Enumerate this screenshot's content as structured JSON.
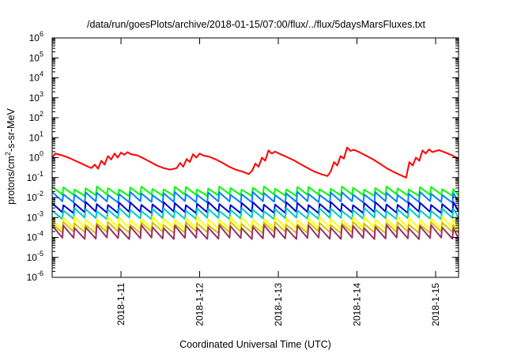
{
  "chart_data": {
    "type": "line",
    "title": "/data/run/goesPlots/archive/2018-01-15/07:00/flux/../flux/5daysMarsFluxes.txt",
    "xlabel": "Coordinated Universal Time (UTC)",
    "ylabel": "protons/cm²-s-sr-MeV",
    "ylabel_parts": [
      "protons/cm",
      "2",
      "-s-sr-MeV"
    ],
    "y_scale": "log",
    "ylim": [
      1e-06,
      1000000.0
    ],
    "y_ticks": [
      {
        "base": "10",
        "exp": "-6",
        "value": 1e-06
      },
      {
        "base": "10",
        "exp": "-5",
        "value": 1e-05
      },
      {
        "base": "10",
        "exp": "-4",
        "value": 0.0001
      },
      {
        "base": "10",
        "exp": "-3",
        "value": 0.001
      },
      {
        "base": "10",
        "exp": "-2",
        "value": 0.01
      },
      {
        "base": "10",
        "exp": "-1",
        "value": 0.1
      },
      {
        "base": "10",
        "exp": "0",
        "value": 1
      },
      {
        "base": "10",
        "exp": "1",
        "value": 10
      },
      {
        "base": "10",
        "exp": "2",
        "value": 100
      },
      {
        "base": "10",
        "exp": "3",
        "value": 1000
      },
      {
        "base": "10",
        "exp": "4",
        "value": 10000
      },
      {
        "base": "10",
        "exp": "5",
        "value": 100000
      },
      {
        "base": "10",
        "exp": "6",
        "value": 1000000
      }
    ],
    "xlim": [
      "2018-01-10T03:00",
      "2018-01-15T07:00"
    ],
    "x_tick_labels": [
      "2018-1-11",
      "2018-1-12",
      "2018-1-13",
      "2018-1-14",
      "2018-1-15"
    ],
    "x_tick_dates": [
      "2018-01-11",
      "2018-01-12",
      "2018-01-13",
      "2018-01-14",
      "2018-01-15"
    ],
    "grid": false,
    "legend": "none",
    "series": [
      {
        "color": "#ff0000",
        "x": [
          "2018-01-10T03:00",
          "2018-01-10T04:00",
          "2018-01-10T06:00",
          "2018-01-10T08:00",
          "2018-01-10T10:00",
          "2018-01-10T12:00",
          "2018-01-10T14:00",
          "2018-01-10T15:00",
          "2018-01-10T16:00",
          "2018-01-10T17:00",
          "2018-01-10T18:00",
          "2018-01-10T19:00",
          "2018-01-10T20:00",
          "2018-01-10T21:00",
          "2018-01-10T22:00",
          "2018-01-10T23:00",
          "2018-01-11T00:00",
          "2018-01-11T01:00",
          "2018-01-11T02:00",
          "2018-01-11T03:00",
          "2018-01-11T05:00",
          "2018-01-11T07:00",
          "2018-01-11T09:00",
          "2018-01-11T11:00",
          "2018-01-11T13:00",
          "2018-01-11T15:00",
          "2018-01-11T17:00",
          "2018-01-11T18:00",
          "2018-01-11T19:00",
          "2018-01-11T20:00",
          "2018-01-11T21:00",
          "2018-01-11T22:00",
          "2018-01-11T23:00",
          "2018-01-12T00:00",
          "2018-01-12T01:00",
          "2018-01-12T03:00",
          "2018-01-12T05:00",
          "2018-01-12T07:00",
          "2018-01-12T09:00",
          "2018-01-12T11:00",
          "2018-01-12T13:00",
          "2018-01-12T15:00",
          "2018-01-12T16:00",
          "2018-01-12T17:00",
          "2018-01-12T18:00",
          "2018-01-12T19:00",
          "2018-01-12T20:00",
          "2018-01-12T21:00",
          "2018-01-12T22:00",
          "2018-01-12T23:00",
          "2018-01-13T01:00",
          "2018-01-13T03:00",
          "2018-01-13T05:00",
          "2018-01-13T07:00",
          "2018-01-13T09:00",
          "2018-01-13T11:00",
          "2018-01-13T13:00",
          "2018-01-13T15:00",
          "2018-01-13T16:00",
          "2018-01-13T17:00",
          "2018-01-13T18:00",
          "2018-01-13T19:00",
          "2018-01-13T20:00",
          "2018-01-13T21:00",
          "2018-01-13T22:00",
          "2018-01-13T23:00",
          "2018-01-14T01:00",
          "2018-01-14T03:00",
          "2018-01-14T05:00",
          "2018-01-14T07:00",
          "2018-01-14T09:00",
          "2018-01-14T11:00",
          "2018-01-14T13:00",
          "2018-01-14T15:00",
          "2018-01-14T16:00",
          "2018-01-14T17:00",
          "2018-01-14T18:00",
          "2018-01-14T19:00",
          "2018-01-14T20:00",
          "2018-01-14T21:00",
          "2018-01-14T22:00",
          "2018-01-14T23:00",
          "2018-01-15T01:00",
          "2018-01-15T03:00",
          "2018-01-15T05:00",
          "2018-01-15T07:00"
        ],
        "values": [
          1.0,
          1.6,
          1.3,
          1.0,
          0.7,
          0.5,
          0.35,
          0.3,
          0.45,
          0.28,
          0.7,
          0.45,
          1.2,
          0.8,
          1.6,
          1.0,
          1.8,
          1.4,
          1.9,
          1.5,
          1.3,
          0.9,
          0.6,
          0.4,
          0.3,
          0.25,
          0.3,
          0.55,
          0.35,
          0.85,
          0.6,
          1.5,
          1.0,
          1.6,
          1.3,
          1.1,
          0.8,
          0.55,
          0.35,
          0.25,
          0.2,
          0.15,
          0.22,
          0.5,
          0.35,
          1.0,
          0.7,
          2.3,
          1.6,
          2.0,
          1.4,
          1.0,
          0.7,
          0.45,
          0.3,
          0.2,
          0.15,
          0.12,
          0.2,
          0.6,
          0.4,
          1.2,
          0.9,
          3.2,
          2.2,
          2.5,
          1.8,
          1.2,
          0.8,
          0.5,
          0.3,
          0.2,
          0.14,
          0.1,
          0.6,
          0.4,
          1.0,
          0.7,
          2.3,
          1.6,
          2.6,
          1.9,
          2.4,
          1.8,
          1.3,
          0.9
        ]
      },
      {
        "color": "#00ff00",
        "x": [
          "2018-01-10T03:00",
          "2018-01-15T07:00"
        ],
        "sawtooth": {
          "base": 0.013,
          "peak": 0.03,
          "period_hours": 3.4
        }
      },
      {
        "color": "#0080ff",
        "x": [
          "2018-01-10T03:00",
          "2018-01-15T07:00"
        ],
        "sawtooth": {
          "base": 0.006,
          "peak": 0.016,
          "period_hours": 3.4
        }
      },
      {
        "color": "#0000cc",
        "x": [
          "2018-01-10T03:00",
          "2018-01-15T07:00"
        ],
        "sawtooth": {
          "base": 0.0018,
          "peak": 0.005,
          "period_hours": 3.4
        }
      },
      {
        "color": "#00c8c8",
        "x": [
          "2018-01-10T03:00",
          "2018-01-15T07:00"
        ],
        "sawtooth": {
          "base": 0.0009,
          "peak": 0.0025,
          "period_hours": 3.4
        }
      },
      {
        "color": "#ffff00",
        "x": [
          "2018-01-10T03:00",
          "2018-01-15T07:00"
        ],
        "sawtooth": {
          "base": 0.00028,
          "peak": 0.0009,
          "period_hours": 3.4
        }
      },
      {
        "color": "#d4c000",
        "x": [
          "2018-01-10T03:00",
          "2018-01-15T07:00"
        ],
        "sawtooth": {
          "base": 0.00018,
          "peak": 0.0005,
          "period_hours": 3.4
        }
      },
      {
        "color": "#993366",
        "x": [
          "2018-01-10T03:00",
          "2018-01-15T07:00"
        ],
        "sawtooth": {
          "base": 9e-05,
          "peak": 0.00035,
          "period_hours": 3.4
        }
      }
    ]
  }
}
